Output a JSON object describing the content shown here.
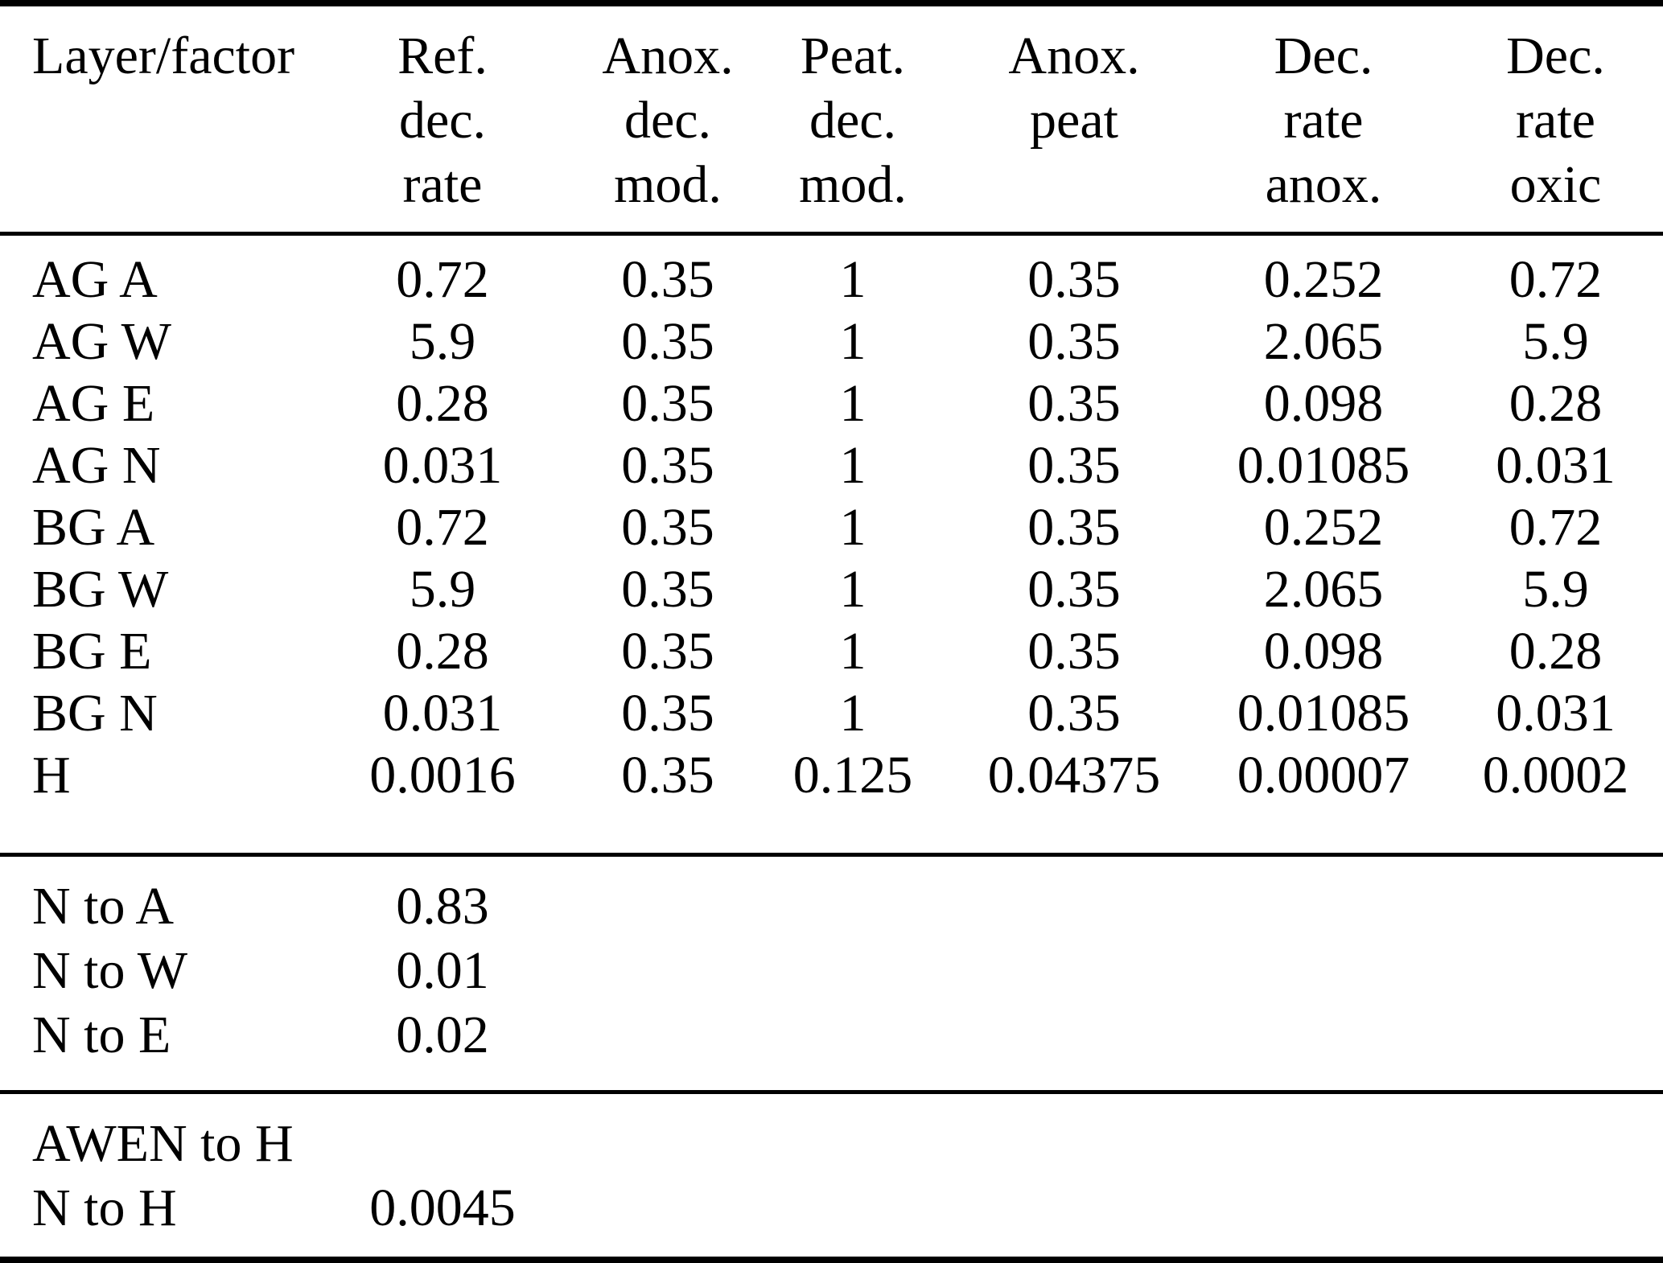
{
  "table": {
    "header": {
      "cells": [
        {
          "lines": [
            "Layer/factor"
          ]
        },
        {
          "lines": [
            "Ref.",
            "dec.",
            "rate"
          ]
        },
        {
          "lines": [
            "Anox.",
            "dec.",
            "mod."
          ]
        },
        {
          "lines": [
            "Peat.",
            "dec.",
            "mod."
          ]
        },
        {
          "lines": [
            "Anox.",
            "peat"
          ]
        },
        {
          "lines": [
            "Dec.",
            "rate",
            "anox."
          ]
        },
        {
          "lines": [
            "Dec.",
            "rate",
            "oxic"
          ]
        }
      ]
    },
    "sections": [
      {
        "rows": [
          {
            "label": "AG A",
            "values": [
              "0.72",
              "0.35",
              "1",
              "0.35",
              "0.252",
              "0.72"
            ]
          },
          {
            "label": "AG W",
            "values": [
              "5.9",
              "0.35",
              "1",
              "0.35",
              "2.065",
              "5.9"
            ]
          },
          {
            "label": "AG E",
            "values": [
              "0.28",
              "0.35",
              "1",
              "0.35",
              "0.098",
              "0.28"
            ]
          },
          {
            "label": "AG N",
            "values": [
              "0.031",
              "0.35",
              "1",
              "0.35",
              "0.01085",
              "0.031"
            ]
          },
          {
            "label": "BG A",
            "values": [
              "0.72",
              "0.35",
              "1",
              "0.35",
              "0.252",
              "0.72"
            ]
          },
          {
            "label": "BG W",
            "values": [
              "5.9",
              "0.35",
              "1",
              "0.35",
              "2.065",
              "5.9"
            ]
          },
          {
            "label": "BG E",
            "values": [
              "0.28",
              "0.35",
              "1",
              "0.35",
              "0.098",
              "0.28"
            ]
          },
          {
            "label": "BG N",
            "values": [
              "0.031",
              "0.35",
              "1",
              "0.35",
              "0.01085",
              "0.031"
            ]
          },
          {
            "label": "H",
            "values": [
              "0.0016",
              "0.35",
              "0.125",
              "0.04375",
              "0.00007",
              "0.0002"
            ]
          }
        ]
      },
      {
        "rows": [
          {
            "label": "N to A",
            "values": [
              "0.83",
              "",
              "",
              "",
              "",
              ""
            ]
          },
          {
            "label": "N to W",
            "values": [
              "0.01",
              "",
              "",
              "",
              "",
              ""
            ]
          },
          {
            "label": "N to E",
            "values": [
              "0.02",
              "",
              "",
              "",
              "",
              ""
            ]
          }
        ]
      },
      {
        "rows": [
          {
            "label": "AWEN to H",
            "values": [
              "",
              "",
              "",
              "",
              "",
              ""
            ]
          },
          {
            "label": "N to H",
            "values": [
              "0.0045",
              "",
              "",
              "",
              "",
              ""
            ]
          }
        ]
      }
    ]
  }
}
